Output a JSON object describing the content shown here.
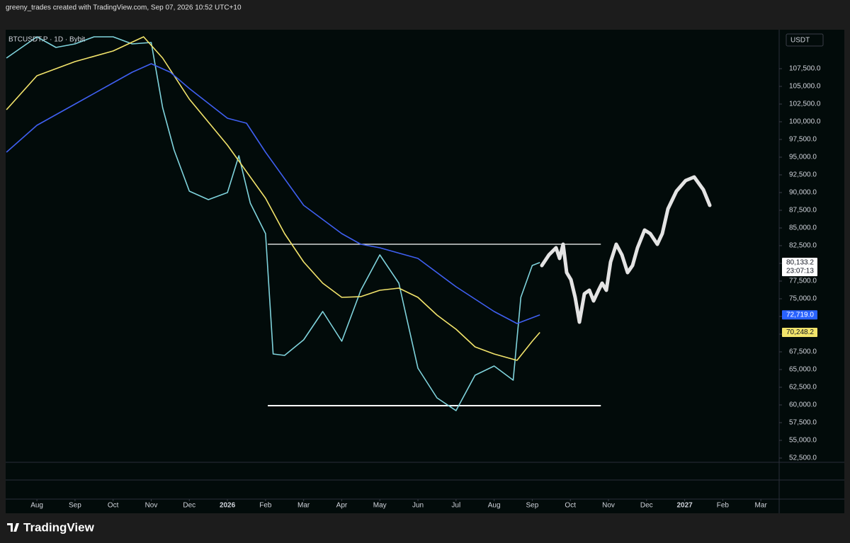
{
  "header": {
    "text": "greeny_trades created with TradingView.com, Sep 07, 2026 10:52 UTC+10"
  },
  "symbol_legend": "BTCUSDT.P · 1D · Bybit",
  "currency": "USDT",
  "footer_logo": "TradingView",
  "chart_data": {
    "type": "line",
    "xlim": [
      -0.82,
      19.48
    ],
    "ylim": [
      51900,
      112700
    ],
    "xticks": [
      {
        "value": 0,
        "label": "Aug"
      },
      {
        "value": 1,
        "label": "Sep"
      },
      {
        "value": 2,
        "label": "Oct"
      },
      {
        "value": 3,
        "label": "Nov"
      },
      {
        "value": 4,
        "label": "Dec"
      },
      {
        "value": 5,
        "label": "2026"
      },
      {
        "value": 6,
        "label": "Feb"
      },
      {
        "value": 7,
        "label": "Mar"
      },
      {
        "value": 8,
        "label": "Apr"
      },
      {
        "value": 9,
        "label": "May"
      },
      {
        "value": 10,
        "label": "Jun"
      },
      {
        "value": 11,
        "label": "Jul"
      },
      {
        "value": 12,
        "label": "Aug"
      },
      {
        "value": 13,
        "label": "Sep"
      },
      {
        "value": 14,
        "label": "Oct"
      },
      {
        "value": 15,
        "label": "Nov"
      },
      {
        "value": 16,
        "label": "Dec"
      },
      {
        "value": 17,
        "label": "2027"
      },
      {
        "value": 18,
        "label": "Feb"
      },
      {
        "value": 19,
        "label": "Mar"
      }
    ],
    "yticks": [
      {
        "value": 52500,
        "label": "52,500.0"
      },
      {
        "value": 55000,
        "label": "55,000.0"
      },
      {
        "value": 57500,
        "label": "57,500.0"
      },
      {
        "value": 60000,
        "label": "60,000.0"
      },
      {
        "value": 62500,
        "label": "62,500.0"
      },
      {
        "value": 65000,
        "label": "65,000.0"
      },
      {
        "value": 67500,
        "label": "67,500.0"
      },
      {
        "value": 70000,
        "label": "70,000.0"
      },
      {
        "value": 72500,
        "label": "72,500.0"
      },
      {
        "value": 75000,
        "label": "75,000.0"
      },
      {
        "value": 77500,
        "label": "77,500.0"
      },
      {
        "value": 80000,
        "label": "80,000.0"
      },
      {
        "value": 82500,
        "label": "82,500.0"
      },
      {
        "value": 85000,
        "label": "85,000.0"
      },
      {
        "value": 87500,
        "label": "87,500.0"
      },
      {
        "value": 90000,
        "label": "90,000.0"
      },
      {
        "value": 92500,
        "label": "92,500.0"
      },
      {
        "value": 95000,
        "label": "95,000.0"
      },
      {
        "value": 97500,
        "label": "97,500.0"
      },
      {
        "value": 100000,
        "label": "100,000.0"
      },
      {
        "value": 102500,
        "label": "102,500.0"
      },
      {
        "value": 105000,
        "label": "105,000.0"
      },
      {
        "value": 107500,
        "label": "107,500.0"
      }
    ],
    "series": [
      {
        "color": "#7fd3dc",
        "x": [
          -0.8,
          0,
          0.5,
          1,
          1.5,
          2,
          2.5,
          3,
          3.3,
          3.6,
          4,
          4.5,
          5,
          5.3,
          5.6,
          6,
          6.2,
          6.5,
          7,
          7.5,
          8,
          8.5,
          9,
          9.5,
          10,
          10.5,
          11,
          11.5,
          12,
          12.5,
          12.7,
          13,
          13.2
        ],
        "values": [
          109000,
          112000,
          110500,
          111000,
          112000,
          112000,
          111000,
          111200,
          102000,
          96000,
          90200,
          89000,
          90000,
          95200,
          88500,
          84200,
          67200,
          67000,
          69200,
          73200,
          69000,
          76200,
          81200,
          77200,
          65200,
          61000,
          59200,
          64200,
          65500,
          63500,
          75200,
          79700,
          80133.2
        ]
      },
      {
        "color": "#f2e46b",
        "x": [
          -0.8,
          0,
          1,
          2,
          2.8,
          3.3,
          4,
          5,
          6,
          6.5,
          7,
          7.5,
          8,
          8.5,
          9,
          9.5,
          10,
          10.5,
          11,
          11.5,
          12,
          12.6,
          13,
          13.2
        ],
        "values": [
          101700,
          106500,
          108500,
          110000,
          112000,
          109000,
          103200,
          96700,
          89200,
          84200,
          80200,
          77200,
          75200,
          75300,
          76200,
          76500,
          75200,
          72700,
          70700,
          68200,
          67200,
          66300,
          69000,
          70248.2
        ]
      },
      {
        "color": "#3f5ff0",
        "x": [
          -0.8,
          0,
          1,
          2,
          2.5,
          3,
          3.5,
          4,
          5,
          5.5,
          6,
          7,
          8,
          8.5,
          9,
          10,
          11,
          12,
          12.6,
          13.2
        ],
        "values": [
          95700,
          99500,
          102500,
          105500,
          107000,
          108200,
          107000,
          104700,
          100500,
          99800,
          95700,
          88200,
          84200,
          82700,
          82200,
          80700,
          76700,
          73200,
          71500,
          72719
        ]
      }
    ],
    "levels": [
      {
        "value": 82700,
        "x": [
          6.06,
          14.8
        ]
      },
      {
        "value": 59900,
        "x": [
          6.06,
          14.8
        ]
      }
    ],
    "price_badges": [
      {
        "value": 80133.2,
        "label": "80,133.2",
        "countdown": "23:07:13",
        "color": "#ffffff"
      },
      {
        "value": 72719,
        "label": "72,719.0",
        "color": "#2962ff"
      },
      {
        "value": 70248.2,
        "label": "70,248.2",
        "color": "#f2e46b"
      }
    ]
  }
}
